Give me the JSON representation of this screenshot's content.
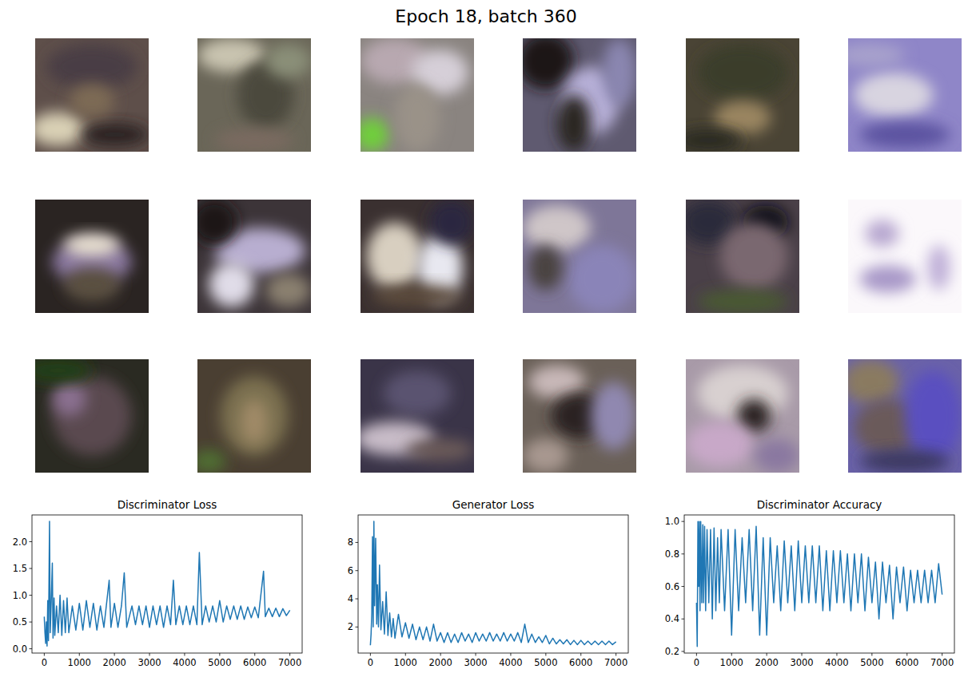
{
  "title": "Epoch 18, batch 360",
  "chart_data": [
    {
      "type": "line",
      "title": "Discriminator Loss",
      "color": "#1f77b4",
      "grid": false,
      "x": [
        0,
        20,
        40,
        60,
        80,
        100,
        120,
        150,
        170,
        200,
        230,
        250,
        280,
        300,
        350,
        400,
        450,
        500,
        550,
        600,
        650,
        700,
        800,
        900,
        1000,
        1100,
        1200,
        1300,
        1400,
        1500,
        1600,
        1700,
        1850,
        1900,
        2000,
        2100,
        2200,
        2280,
        2350,
        2500,
        2600,
        2700,
        2800,
        2900,
        3000,
        3100,
        3200,
        3300,
        3400,
        3500,
        3600,
        3680,
        3750,
        3850,
        3950,
        4050,
        4150,
        4250,
        4350,
        4420,
        4500,
        4600,
        4700,
        4800,
        4900,
        5000,
        5100,
        5200,
        5300,
        5400,
        5500,
        5600,
        5700,
        5800,
        5900,
        6000,
        6100,
        6250,
        6300,
        6400,
        6500,
        6600,
        6700,
        6800,
        6900,
        7000
      ],
      "values": [
        0.6,
        0.3,
        0.1,
        0.5,
        0.05,
        0.9,
        0.15,
        2.38,
        0.3,
        0.9,
        1.6,
        0.2,
        0.95,
        0.25,
        0.8,
        0.3,
        1.0,
        0.25,
        0.9,
        0.3,
        0.95,
        0.3,
        0.8,
        0.35,
        0.85,
        0.35,
        0.9,
        0.4,
        0.85,
        0.35,
        0.8,
        0.4,
        1.28,
        0.4,
        0.85,
        0.4,
        0.8,
        1.42,
        0.4,
        0.8,
        0.45,
        0.8,
        0.45,
        0.8,
        0.4,
        0.8,
        0.45,
        0.8,
        0.4,
        0.8,
        0.45,
        1.28,
        0.45,
        0.8,
        0.45,
        0.8,
        0.45,
        0.8,
        0.45,
        1.8,
        0.45,
        0.8,
        0.5,
        0.8,
        0.5,
        0.9,
        0.5,
        0.8,
        0.55,
        0.8,
        0.55,
        0.8,
        0.55,
        0.78,
        0.58,
        0.78,
        0.58,
        1.45,
        0.6,
        0.76,
        0.6,
        0.76,
        0.6,
        0.75,
        0.62,
        0.72
      ],
      "xlim": [
        -350,
        7350
      ],
      "xticks": [
        0,
        1000,
        2000,
        3000,
        4000,
        5000,
        6000,
        7000
      ],
      "ylim": [
        -0.08,
        2.5
      ],
      "yticks": [
        {
          "value": 0,
          "label": "0.0"
        },
        {
          "value": 0.5,
          "label": "0.5"
        },
        {
          "value": 1,
          "label": "1.0"
        },
        {
          "value": 1.5,
          "label": "1.5"
        },
        {
          "value": 2,
          "label": "2.0"
        }
      ]
    },
    {
      "type": "line",
      "title": "Generator Loss",
      "color": "#1f77b4",
      "grid": false,
      "x": [
        0,
        20,
        40,
        60,
        80,
        100,
        120,
        150,
        180,
        200,
        230,
        260,
        300,
        350,
        400,
        450,
        500,
        550,
        600,
        650,
        700,
        800,
        900,
        1000,
        1100,
        1200,
        1300,
        1400,
        1500,
        1600,
        1700,
        1800,
        1900,
        2000,
        2100,
        2200,
        2300,
        2400,
        2500,
        2600,
        2700,
        2800,
        2900,
        3000,
        3100,
        3200,
        3300,
        3400,
        3500,
        3600,
        3700,
        3800,
        3900,
        4000,
        4100,
        4200,
        4300,
        4400,
        4500,
        4600,
        4700,
        4800,
        4900,
        5000,
        5100,
        5200,
        5300,
        5400,
        5500,
        5600,
        5700,
        5800,
        5900,
        6000,
        6100,
        6200,
        6300,
        6400,
        6500,
        6600,
        6700,
        6800,
        6900,
        7000
      ],
      "values": [
        0.7,
        1.5,
        3.0,
        8.4,
        2.0,
        9.5,
        3.5,
        8.3,
        2.2,
        5.0,
        2.0,
        6.4,
        1.8,
        3.8,
        1.5,
        4.5,
        1.4,
        3.0,
        1.3,
        2.6,
        1.2,
        2.9,
        1.3,
        2.3,
        1.2,
        2.2,
        1.1,
        2.0,
        1.1,
        2.0,
        1.0,
        2.2,
        1.0,
        1.6,
        0.9,
        1.6,
        0.9,
        1.5,
        0.9,
        1.6,
        1.0,
        1.5,
        0.9,
        1.6,
        1.0,
        1.5,
        1.0,
        1.6,
        1.0,
        1.5,
        1.0,
        1.6,
        1.0,
        1.5,
        1.0,
        1.6,
        0.9,
        2.2,
        0.9,
        1.5,
        0.9,
        1.3,
        0.9,
        1.4,
        0.8,
        1.2,
        0.8,
        1.1,
        0.8,
        1.1,
        0.75,
        1.05,
        0.75,
        1.05,
        0.75,
        1.0,
        0.75,
        1.0,
        0.75,
        1.0,
        0.75,
        1.0,
        0.75,
        0.95
      ],
      "xlim": [
        -350,
        7350
      ],
      "xticks": [
        0,
        1000,
        2000,
        3000,
        4000,
        5000,
        6000,
        7000
      ],
      "ylim": [
        0.15,
        9.95
      ],
      "yticks": [
        2,
        4,
        6,
        8
      ]
    },
    {
      "type": "line",
      "title": "Discriminator Accuracy",
      "color": "#1f77b4",
      "grid": false,
      "x": [
        0,
        20,
        40,
        60,
        80,
        100,
        120,
        150,
        180,
        200,
        230,
        260,
        300,
        350,
        400,
        450,
        500,
        550,
        600,
        650,
        700,
        800,
        900,
        1000,
        1100,
        1200,
        1300,
        1400,
        1500,
        1600,
        1700,
        1800,
        1900,
        2000,
        2100,
        2200,
        2300,
        2400,
        2500,
        2600,
        2700,
        2800,
        2900,
        3000,
        3100,
        3200,
        3300,
        3400,
        3500,
        3600,
        3700,
        3800,
        3900,
        4000,
        4100,
        4200,
        4300,
        4400,
        4500,
        4600,
        4700,
        4800,
        4900,
        5000,
        5100,
        5200,
        5300,
        5400,
        5500,
        5600,
        5700,
        5800,
        5900,
        6000,
        6100,
        6200,
        6300,
        6400,
        6500,
        6600,
        6700,
        6800,
        6900,
        7000
      ],
      "values": [
        0.5,
        0.23,
        1.0,
        0.6,
        1.0,
        0.45,
        1.0,
        0.5,
        0.98,
        0.5,
        0.97,
        0.45,
        0.95,
        0.5,
        0.95,
        0.4,
        0.96,
        0.45,
        0.9,
        0.5,
        0.95,
        0.45,
        0.95,
        0.3,
        0.95,
        0.45,
        0.9,
        0.5,
        0.95,
        0.45,
        0.97,
        0.3,
        0.9,
        0.3,
        0.9,
        0.5,
        0.85,
        0.45,
        0.88,
        0.5,
        0.85,
        0.45,
        0.88,
        0.5,
        0.85,
        0.5,
        0.85,
        0.5,
        0.85,
        0.45,
        0.82,
        0.45,
        0.82,
        0.5,
        0.82,
        0.5,
        0.8,
        0.45,
        0.8,
        0.5,
        0.8,
        0.45,
        0.78,
        0.5,
        0.75,
        0.4,
        0.75,
        0.5,
        0.73,
        0.4,
        0.72,
        0.5,
        0.72,
        0.45,
        0.7,
        0.5,
        0.7,
        0.5,
        0.7,
        0.5,
        0.7,
        0.5,
        0.74,
        0.55
      ],
      "xlim": [
        -350,
        7350
      ],
      "xticks": [
        0,
        1000,
        2000,
        3000,
        4000,
        5000,
        6000,
        7000
      ],
      "ylim": [
        0.19,
        1.04
      ],
      "yticks": [
        {
          "value": 0.2,
          "label": "0.2"
        },
        {
          "value": 0.4,
          "label": "0.4"
        },
        {
          "value": 0.6,
          "label": "0.6"
        },
        {
          "value": 0.8,
          "label": "0.8"
        },
        {
          "value": 1,
          "label": "1.0"
        }
      ]
    }
  ]
}
